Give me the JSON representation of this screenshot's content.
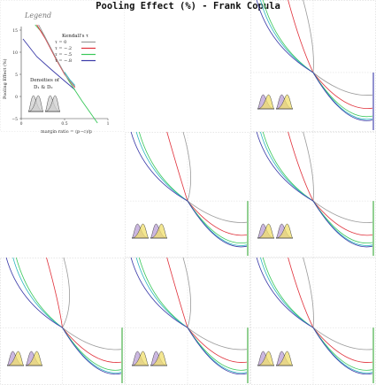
{
  "title": "Pooling Effect (%) - Frank Copula",
  "legend": {
    "heading": "Legend",
    "tau_heading": "Kendall's τ",
    "densities_line1": "Densities of",
    "densities_line2": "D₁ & D₂",
    "ylabel": "Pooling Effect (%)",
    "xlabel": "margin ratio = (p−c)/p",
    "y_ticks": [
      "15",
      "10",
      "5",
      "0",
      "−5"
    ],
    "x_ticks": [
      "0",
      "0.5",
      "1"
    ]
  },
  "colors": {
    "tau_0": "#9a9a9a",
    "tau_-0.2": "#e0303a",
    "tau_-0.5": "#39c85a",
    "tau_-0.8": "#3a3aa8",
    "extra_teal": "#2fb7c0",
    "density_purple": "#b99fd6",
    "density_yellow": "#f0df6c",
    "density_grey": "#cfcfcf"
  },
  "chart_data": {
    "type": "line",
    "title": "Pooling Effect (%) - Frank Copula",
    "xlabel": "margin ratio = (p−c)/p",
    "ylabel": "Pooling Effect (%)",
    "xlim": [
      0,
      1
    ],
    "ylim": [
      -5,
      15
    ],
    "grid": true,
    "legend_position": "top-right",
    "series": [
      {
        "name": "τ = 0",
        "x": [
          0,
          0.1,
          0.2,
          0.3,
          0.4,
          0.5,
          0.6,
          0.7,
          0.8
        ],
        "values": [
          15,
          12.2,
          9.8,
          7.6,
          5.6,
          3.7,
          1.9,
          0.2,
          -1.4
        ]
      },
      {
        "name": "τ = −.2",
        "x": [
          0,
          0.1,
          0.2,
          0.3,
          0.4,
          0.5,
          0.6,
          0.7,
          0.8
        ],
        "values": [
          15,
          12.6,
          10.3,
          8.1,
          6.0,
          3.9,
          1.8,
          -0.2,
          -2.3
        ]
      },
      {
        "name": "τ = −.5",
        "x": [
          0,
          0.1,
          0.2,
          0.3,
          0.4,
          0.5,
          0.6,
          0.7,
          0.8,
          0.9
        ],
        "values": [
          15,
          13.0,
          11.0,
          9.0,
          6.9,
          4.8,
          2.6,
          0.4,
          -2.0,
          -4.5
        ]
      },
      {
        "name": "τ = −.8",
        "x": [
          0,
          0.1,
          0.2,
          0.3,
          0.4,
          0.5,
          0.6
        ],
        "values": [
          15,
          13.5,
          11.8,
          9.9,
          7.8,
          5.5,
          3.2
        ]
      }
    ],
    "panels": [
      {
        "row": 1,
        "col": 3,
        "normal_bias": 0.0,
        "vertical_right": "#3a3aa8"
      },
      {
        "row": 2,
        "col": 2,
        "normal_bias": 0.3,
        "vertical_right": "#39a83a"
      },
      {
        "row": 2,
        "col": 3,
        "normal_bias": 0.0,
        "vertical_right": "#39a83a"
      },
      {
        "row": 3,
        "col": 1,
        "normal_bias": 0.6,
        "vertical_right": "#39a83a"
      },
      {
        "row": 3,
        "col": 2,
        "normal_bias": 0.3,
        "vertical_right": "#39a83a"
      },
      {
        "row": 3,
        "col": 3,
        "normal_bias": 0.0,
        "vertical_right": "#39a83a"
      }
    ]
  },
  "legend_entries": [
    {
      "label": "τ =  0",
      "color_key": "tau_0"
    },
    {
      "label": "τ = −.2",
      "color_key": "tau_-0.2"
    },
    {
      "label": "τ = −.5",
      "color_key": "tau_-0.5"
    },
    {
      "label": "τ = −.8",
      "color_key": "tau_-0.8"
    }
  ]
}
